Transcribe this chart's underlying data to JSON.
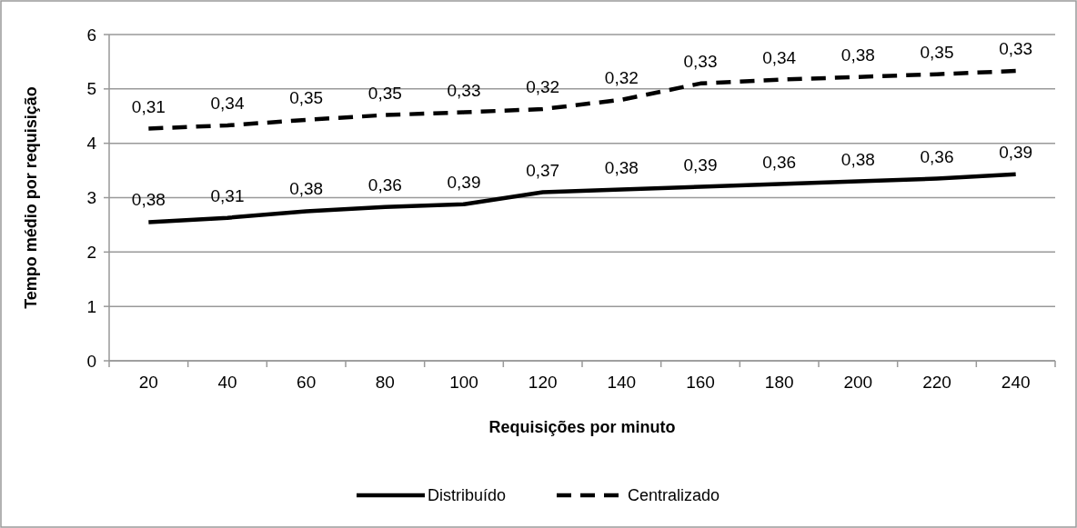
{
  "chart_data": {
    "type": "line",
    "xlabel": "Requisições por minuto",
    "ylabel": "Tempo médio por requisição",
    "categories": [
      "20",
      "40",
      "60",
      "80",
      "100",
      "120",
      "140",
      "160",
      "180",
      "200",
      "220",
      "240"
    ],
    "series": [
      {
        "name": "Distribuído",
        "color": "#000000",
        "line_style": "solid",
        "values": [
          2.55,
          2.63,
          2.75,
          2.83,
          2.88,
          3.1,
          3.15,
          3.2,
          3.25,
          3.3,
          3.35,
          3.43
        ]
      },
      {
        "name": "Centralizado",
        "color": "#000000",
        "line_style": "dashed",
        "values": [
          4.27,
          4.33,
          4.43,
          4.52,
          4.57,
          4.63,
          4.8,
          5.1,
          5.17,
          5.22,
          5.27,
          5.33
        ]
      }
    ],
    "annotations": [
      {
        "text": "0,38",
        "x": "20",
        "y": 2.55
      },
      {
        "text": "0,31",
        "x": "40",
        "y": 2.63
      },
      {
        "text": "0,38",
        "x": "60",
        "y": 2.75
      },
      {
        "text": "0,36",
        "x": "80",
        "y": 2.83
      },
      {
        "text": "0,39",
        "x": "100",
        "y": 2.88
      },
      {
        "text": "0,37",
        "x": "120",
        "y": 3.1
      },
      {
        "text": "0,38",
        "x": "140",
        "y": 3.15
      },
      {
        "text": "0,39",
        "x": "160",
        "y": 3.2
      },
      {
        "text": "0,36",
        "x": "180",
        "y": 3.25
      },
      {
        "text": "0,38",
        "x": "200",
        "y": 3.3
      },
      {
        "text": "0,36",
        "x": "220",
        "y": 3.35
      },
      {
        "text": "0,39",
        "x": "240",
        "y": 3.43
      },
      {
        "text": "0,31",
        "x": "20",
        "y": 4.27
      },
      {
        "text": "0,34",
        "x": "40",
        "y": 4.33
      },
      {
        "text": "0,35",
        "x": "60",
        "y": 4.43
      },
      {
        "text": "0,35",
        "x": "80",
        "y": 4.52
      },
      {
        "text": "0,33",
        "x": "100",
        "y": 4.57
      },
      {
        "text": "0,32",
        "x": "120",
        "y": 4.63
      },
      {
        "text": "0,32",
        "x": "140",
        "y": 4.8
      },
      {
        "text": "0,33",
        "x": "160",
        "y": 5.1
      },
      {
        "text": "0,34",
        "x": "180",
        "y": 5.17
      },
      {
        "text": "0,38",
        "x": "200",
        "y": 5.22
      },
      {
        "text": "0,35",
        "x": "220",
        "y": 5.27
      },
      {
        "text": "0,33",
        "x": "240",
        "y": 5.33
      }
    ],
    "ylim": [
      0,
      6
    ],
    "yticks": [
      0,
      1,
      2,
      3,
      4,
      5,
      6
    ],
    "grid": "y",
    "legend": "bottom",
    "marker": "none"
  }
}
